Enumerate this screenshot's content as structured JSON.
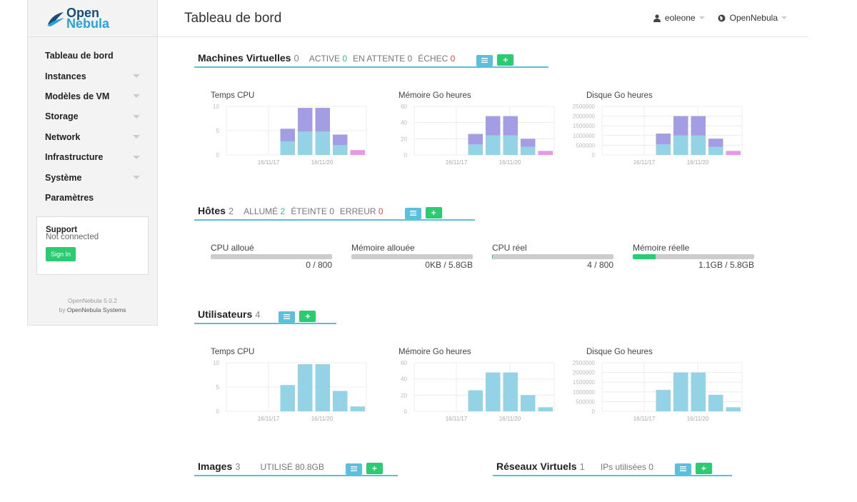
{
  "logo": {
    "line1": "Open",
    "line2": "Nebula"
  },
  "sidebar": {
    "items": [
      {
        "label": "Tableau de bord",
        "caret": false
      },
      {
        "label": "Instances",
        "caret": true
      },
      {
        "label": "Modèles de VM",
        "caret": true
      },
      {
        "label": "Storage",
        "caret": true
      },
      {
        "label": "Network",
        "caret": true
      },
      {
        "label": "Infrastructure",
        "caret": true
      },
      {
        "label": "Système",
        "caret": true
      },
      {
        "label": "Paramètres",
        "caret": false
      }
    ],
    "support": {
      "title": "Support",
      "status": "Not connected",
      "signin": "Sign In"
    },
    "version": {
      "line1": "OpenNebula 5.0.2",
      "by": "by",
      "company": "OpenNebula Systems"
    }
  },
  "header": {
    "title": "Tableau de bord",
    "user": "eoleone",
    "zone": "OpenNebula"
  },
  "vms": {
    "title": "Machines Virtuelles",
    "count": "0",
    "active_label": "ACTIVE",
    "active": "0",
    "pending_label": "EN ATTENTE",
    "pending": "0",
    "failed_label": "ÉCHEC",
    "failed": "0"
  },
  "hosts": {
    "title": "Hôtes",
    "count": "2",
    "on_label": "ALLUMÉ",
    "on": "2",
    "off_label": "ÉTEINTE",
    "off": "0",
    "error_label": "ERREUR",
    "error": "0",
    "bars": [
      {
        "label": "CPU alloué",
        "value": "0 / 800",
        "fraction": 0.0
      },
      {
        "label": "Mémoire allouée",
        "value": "0KB / 5.8GB",
        "fraction": 0.0
      },
      {
        "label": "CPU réel",
        "value": "4 / 800",
        "fraction": 0.005
      },
      {
        "label": "Mémoire réelle",
        "value": "1.1GB / 5.8GB",
        "fraction": 0.19
      }
    ]
  },
  "users": {
    "title": "Utilisateurs",
    "count": "4"
  },
  "images": {
    "title": "Images",
    "count": "3",
    "used_label": "UTILISÉ",
    "used": "80.8GB"
  },
  "vnets": {
    "title": "Réseaux Virtuels",
    "count": "1",
    "ips_label": "IPs utilisées",
    "ips": "0"
  },
  "colors": {
    "blue": "#94d3e6",
    "purple": "#a39ee3",
    "magenta": "#e49ae6",
    "green": "#2bcc71",
    "accent": "#5bc0de"
  },
  "chart_data": [
    {
      "type": "bar",
      "title": "Temps CPU",
      "ylim": [
        0,
        10
      ],
      "yticks": [
        "10",
        "5",
        "0"
      ],
      "xticks": [
        "16/11/17",
        "16/11/20"
      ],
      "series": [
        {
          "values": [
            0,
            0,
            0,
            2.8,
            4.8,
            4.8,
            2.0,
            0
          ]
        },
        {
          "values": [
            0,
            0,
            0,
            2.6,
            4.9,
            4.9,
            2.2,
            0
          ]
        },
        {
          "values": [
            0,
            0,
            0,
            0,
            0,
            0,
            0,
            1.0
          ]
        }
      ]
    },
    {
      "type": "bar",
      "title": "Mémoire Go heures",
      "ylim": [
        0,
        60
      ],
      "yticks": [
        "60",
        "40",
        "20",
        "0"
      ],
      "xticks": [
        "16/11/17",
        "16/11/20"
      ],
      "series": [
        {
          "values": [
            0,
            0,
            0,
            13,
            24,
            24,
            10,
            0
          ]
        },
        {
          "values": [
            0,
            0,
            0,
            13,
            24,
            24,
            10,
            0
          ]
        },
        {
          "values": [
            0,
            0,
            0,
            0,
            0,
            0,
            0,
            5
          ]
        }
      ]
    },
    {
      "type": "bar",
      "title": "Disque Go heures",
      "ylim": [
        0,
        2500000
      ],
      "yticks": [
        "2500000",
        "2000000",
        "1500000",
        "1000000",
        "500000",
        "0"
      ],
      "xticks": [
        "16/11/17",
        "16/11/20"
      ],
      "series": [
        {
          "values": [
            0,
            0,
            0,
            550000,
            1000000,
            1000000,
            420000,
            0
          ]
        },
        {
          "values": [
            0,
            0,
            0,
            550000,
            1000000,
            1000000,
            420000,
            0
          ]
        },
        {
          "values": [
            0,
            0,
            0,
            0,
            0,
            0,
            0,
            210000
          ]
        }
      ]
    },
    {
      "type": "bar",
      "title": "Temps CPU",
      "ylim": [
        0,
        10
      ],
      "yticks": [
        "10",
        "5",
        "0"
      ],
      "xticks": [
        "16/11/17",
        "16/11/20"
      ],
      "series": [
        {
          "values": [
            0,
            0,
            0,
            5.4,
            9.7,
            9.7,
            4.2,
            1.0
          ]
        }
      ]
    },
    {
      "type": "bar",
      "title": "Mémoire Go heures",
      "ylim": [
        0,
        60
      ],
      "yticks": [
        "60",
        "40",
        "20",
        "0"
      ],
      "xticks": [
        "16/11/17",
        "16/11/20"
      ],
      "series": [
        {
          "values": [
            0,
            0,
            0,
            26,
            48,
            48,
            20,
            5
          ]
        }
      ]
    },
    {
      "type": "bar",
      "title": "Disque Go heures",
      "ylim": [
        0,
        2500000
      ],
      "yticks": [
        "2500000",
        "2000000",
        "1500000",
        "1000000",
        "500000",
        "0"
      ],
      "xticks": [
        "16/11/17",
        "16/11/20"
      ],
      "series": [
        {
          "values": [
            0,
            0,
            0,
            1100000,
            2000000,
            2000000,
            850000,
            210000
          ]
        }
      ]
    }
  ]
}
